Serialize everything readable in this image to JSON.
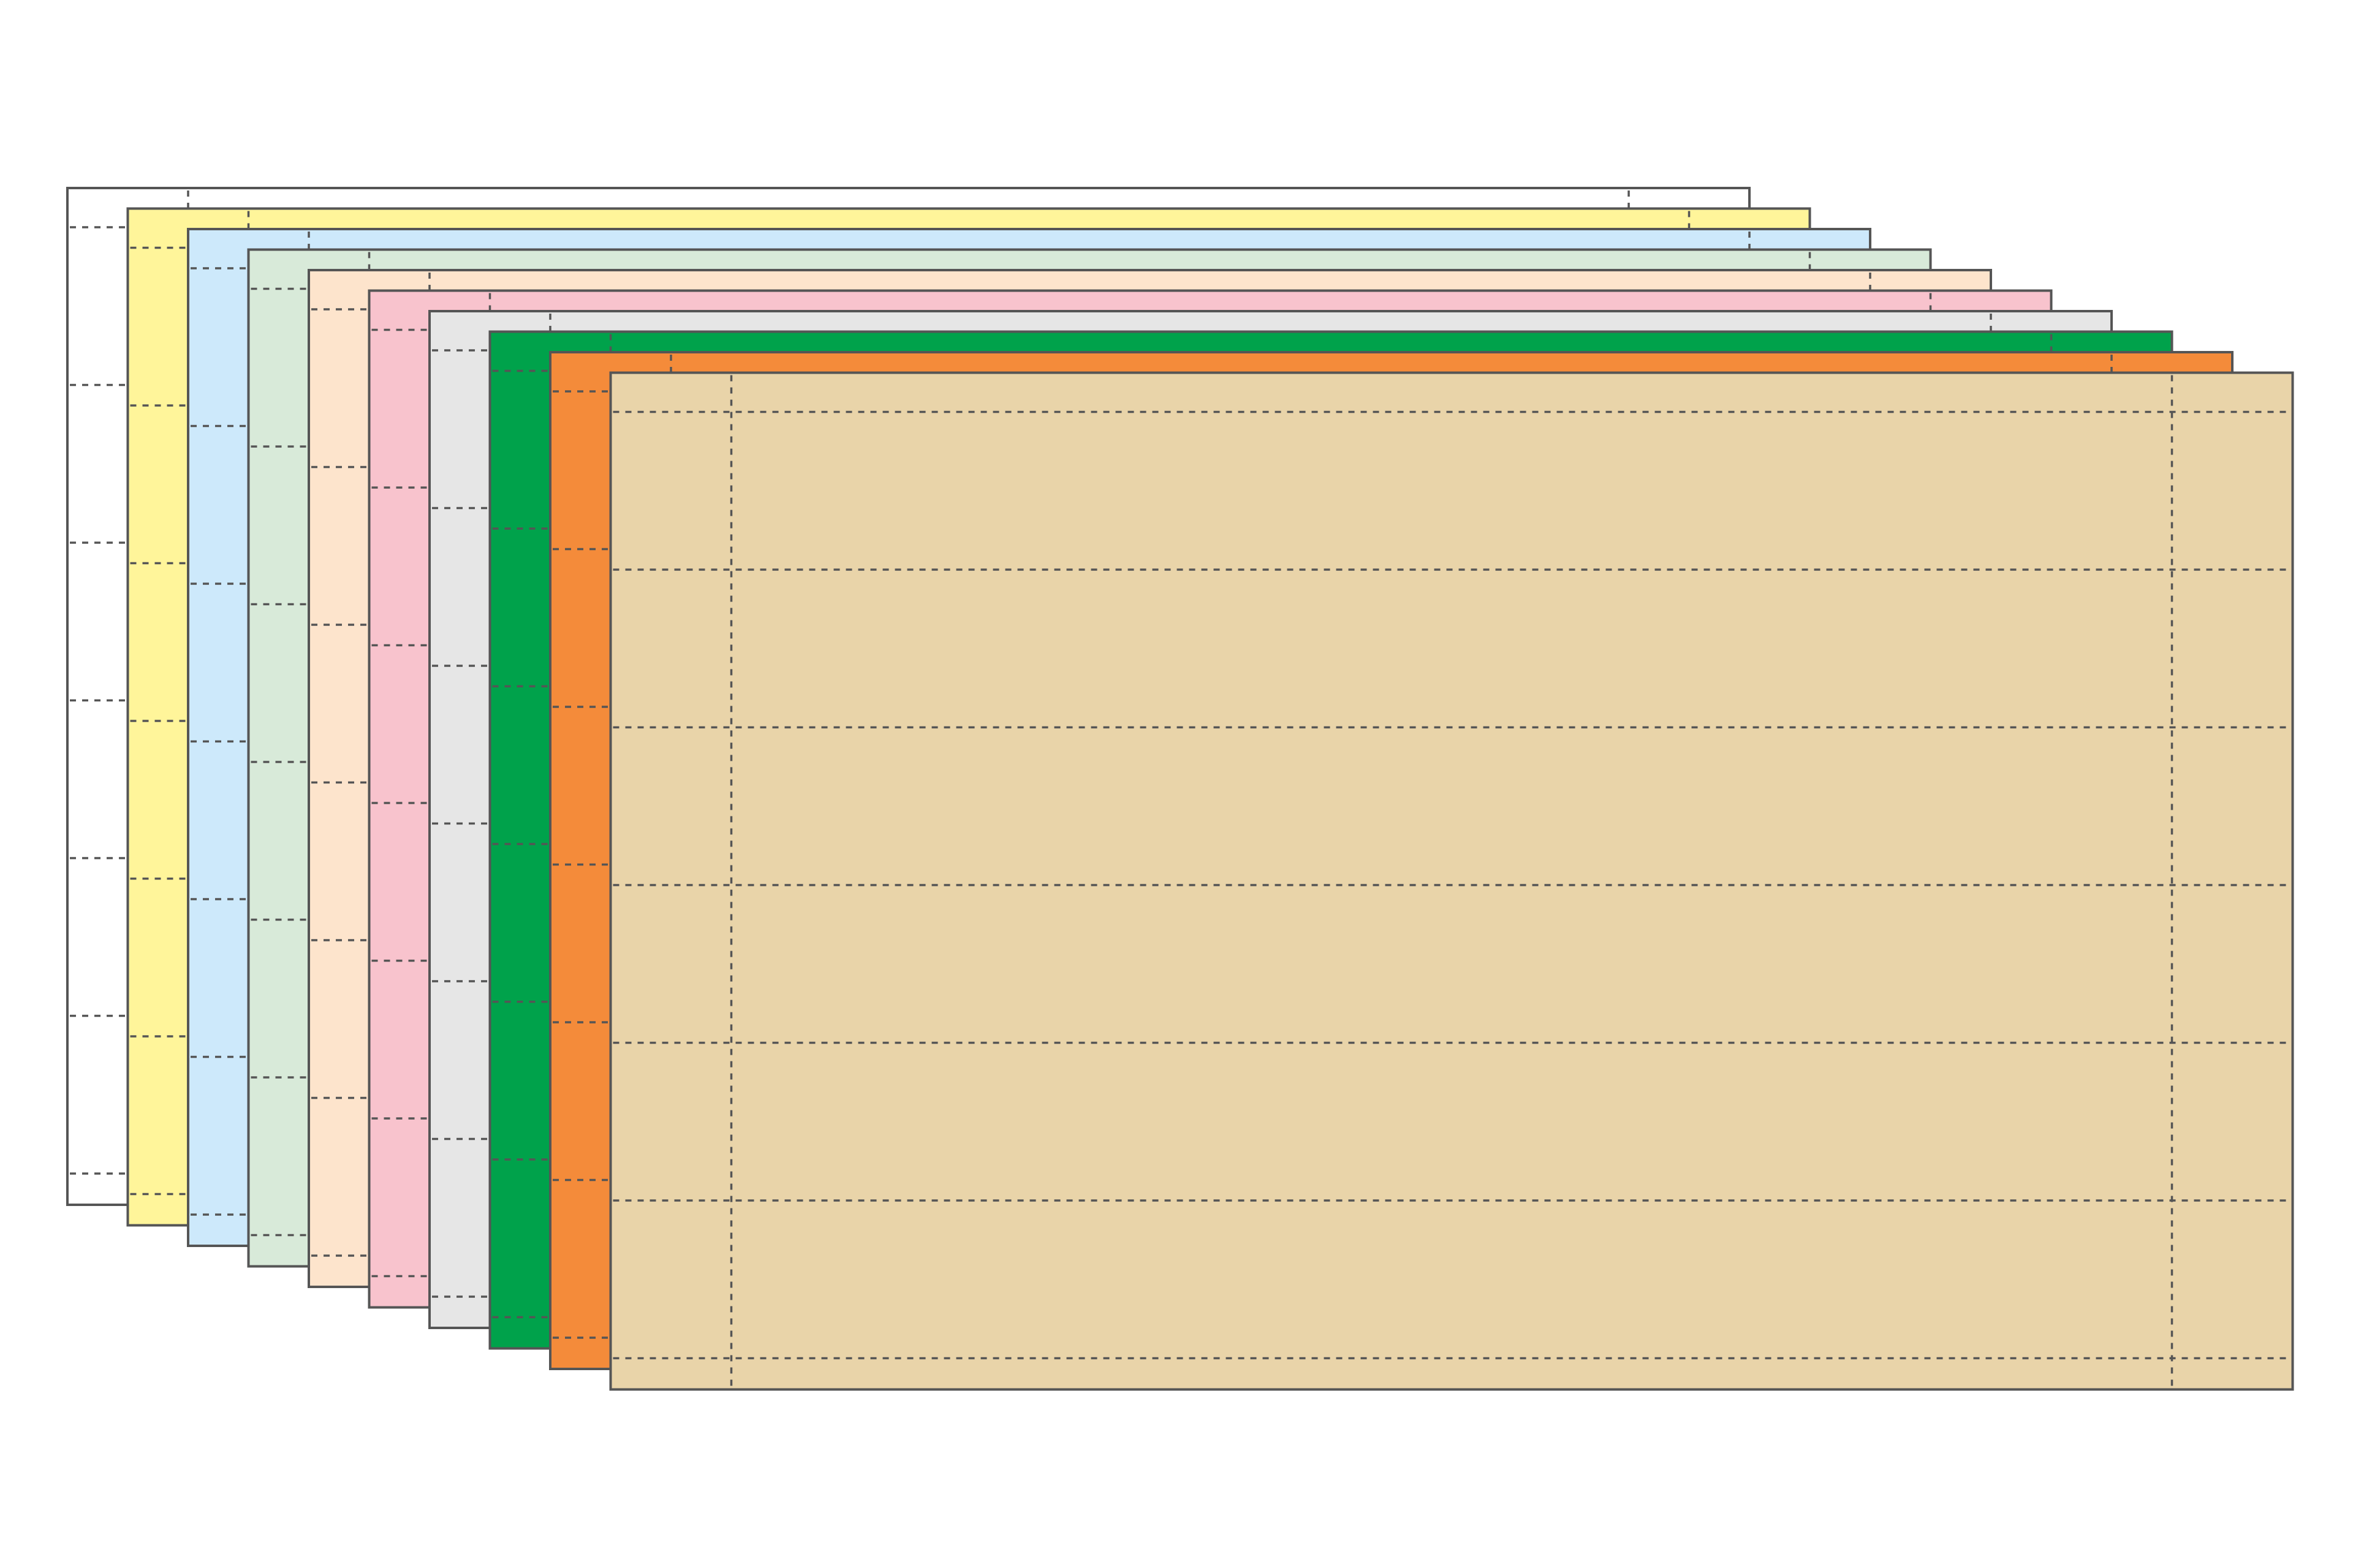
{
  "illustration": {
    "subject": "stack-of-perforated-card-sheets",
    "sheet_count": 10,
    "perforation_rows_per_sheet": 6,
    "perforation_columns_per_sheet": 2,
    "border_color": "#555555",
    "perforation_color": "#555555",
    "sheets": [
      {
        "color_name": "white",
        "fill": "#ffffff"
      },
      {
        "color_name": "yellow",
        "fill": "#fff59a"
      },
      {
        "color_name": "light-blue",
        "fill": "#cde9fb"
      },
      {
        "color_name": "mint",
        "fill": "#d8ead9"
      },
      {
        "color_name": "peach",
        "fill": "#fde4cc"
      },
      {
        "color_name": "pink",
        "fill": "#f8c3cd"
      },
      {
        "color_name": "gray",
        "fill": "#e6e6e6"
      },
      {
        "color_name": "green",
        "fill": "#00a24b"
      },
      {
        "color_name": "orange",
        "fill": "#f48b3a"
      },
      {
        "color_name": "tan",
        "fill": "#e9d4a9"
      }
    ]
  }
}
